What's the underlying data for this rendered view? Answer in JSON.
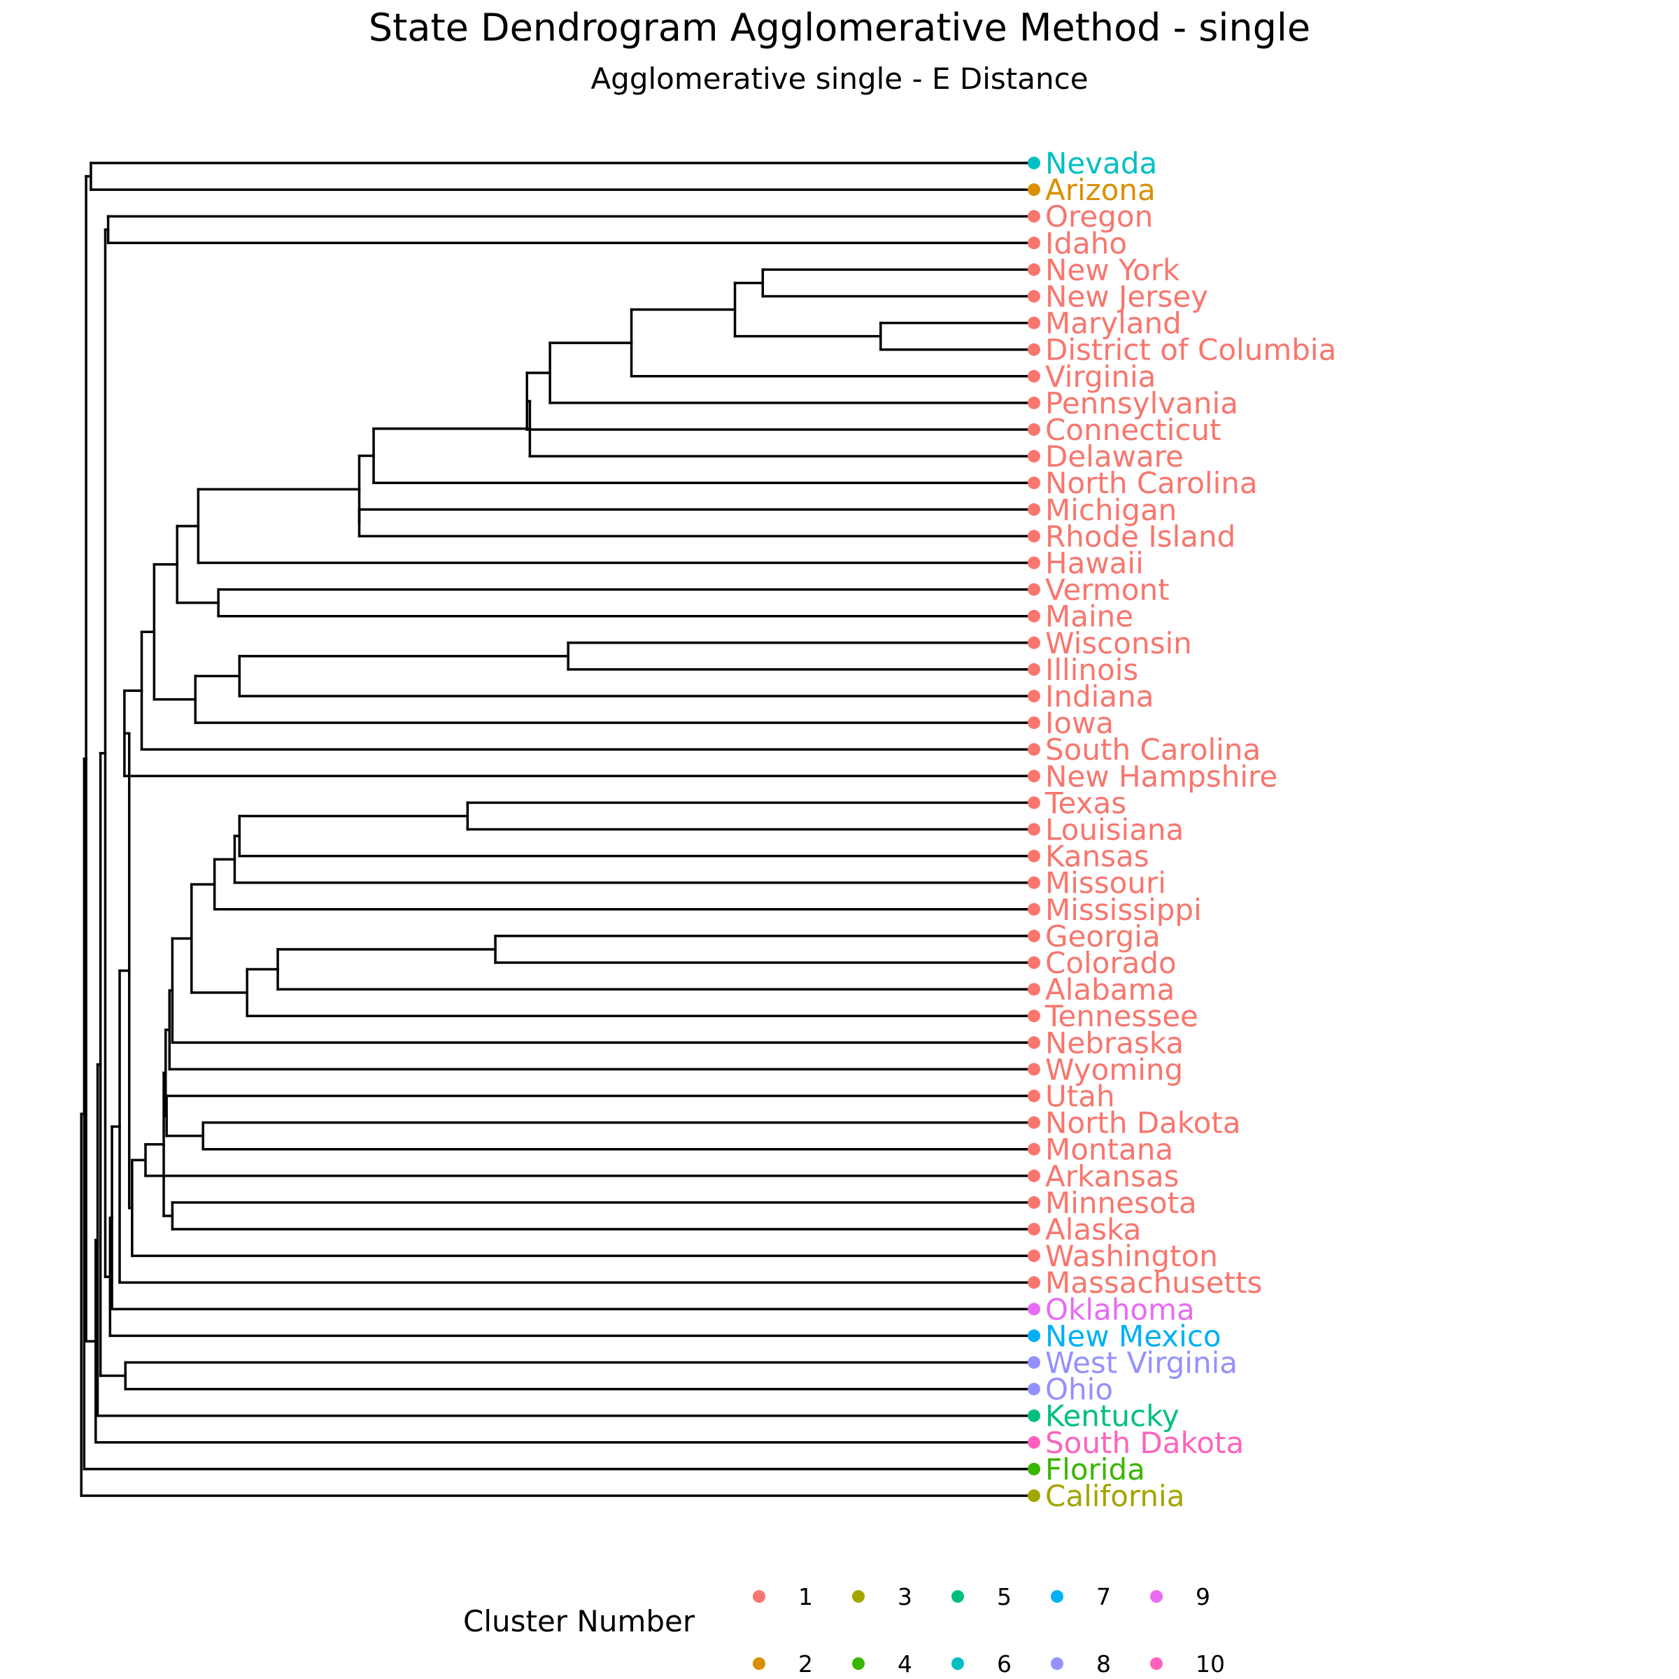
{
  "title": "State Dendrogram Agglomerative Method - single",
  "subtitle": "Agglomerative single - E Distance",
  "chart_data": {
    "type": "dendrogram",
    "orientation": "horizontal, leaves on right",
    "leaves": [
      {
        "label": "Nevada",
        "cluster": 6
      },
      {
        "label": "Arizona",
        "cluster": 2
      },
      {
        "label": "Oregon",
        "cluster": 1
      },
      {
        "label": "Idaho",
        "cluster": 1
      },
      {
        "label": "New York",
        "cluster": 1
      },
      {
        "label": "New Jersey",
        "cluster": 1
      },
      {
        "label": "Maryland",
        "cluster": 1
      },
      {
        "label": "District of Columbia",
        "cluster": 1
      },
      {
        "label": "Virginia",
        "cluster": 1
      },
      {
        "label": "Pennsylvania",
        "cluster": 1
      },
      {
        "label": "Connecticut",
        "cluster": 1
      },
      {
        "label": "Delaware",
        "cluster": 1
      },
      {
        "label": "North Carolina",
        "cluster": 1
      },
      {
        "label": "Michigan",
        "cluster": 1
      },
      {
        "label": "Rhode Island",
        "cluster": 1
      },
      {
        "label": "Hawaii",
        "cluster": 1
      },
      {
        "label": "Vermont",
        "cluster": 1
      },
      {
        "label": "Maine",
        "cluster": 1
      },
      {
        "label": "Wisconsin",
        "cluster": 1
      },
      {
        "label": "Illinois",
        "cluster": 1
      },
      {
        "label": "Indiana",
        "cluster": 1
      },
      {
        "label": "Iowa",
        "cluster": 1
      },
      {
        "label": "South Carolina",
        "cluster": 1
      },
      {
        "label": "New Hampshire",
        "cluster": 1
      },
      {
        "label": "Texas",
        "cluster": 1
      },
      {
        "label": "Louisiana",
        "cluster": 1
      },
      {
        "label": "Kansas",
        "cluster": 1
      },
      {
        "label": "Missouri",
        "cluster": 1
      },
      {
        "label": "Mississippi",
        "cluster": 1
      },
      {
        "label": "Georgia",
        "cluster": 1
      },
      {
        "label": "Colorado",
        "cluster": 1
      },
      {
        "label": "Alabama",
        "cluster": 1
      },
      {
        "label": "Tennessee",
        "cluster": 1
      },
      {
        "label": "Nebraska",
        "cluster": 1
      },
      {
        "label": "Wyoming",
        "cluster": 1
      },
      {
        "label": "Utah",
        "cluster": 1
      },
      {
        "label": "North Dakota",
        "cluster": 1
      },
      {
        "label": "Montana",
        "cluster": 1
      },
      {
        "label": "Arkansas",
        "cluster": 1
      },
      {
        "label": "Minnesota",
        "cluster": 1
      },
      {
        "label": "Alaska",
        "cluster": 1
      },
      {
        "label": "Washington",
        "cluster": 1
      },
      {
        "label": "Massachusetts",
        "cluster": 1
      },
      {
        "label": "Oklahoma",
        "cluster": 9
      },
      {
        "label": "New Mexico",
        "cluster": 7
      },
      {
        "label": "West Virginia",
        "cluster": 8
      },
      {
        "label": "Ohio",
        "cluster": 8
      },
      {
        "label": "Kentucky",
        "cluster": 5
      },
      {
        "label": "South Dakota",
        "cluster": 10
      },
      {
        "label": "Florida",
        "cluster": 4
      },
      {
        "label": "California",
        "cluster": 3
      }
    ],
    "merges": [
      {
        "a": "L4",
        "b": "L5",
        "height": 28.3
      },
      {
        "a": "L6",
        "b": "L7",
        "height": 16.0
      },
      {
        "a": "N0",
        "b": "N1",
        "height": 31.2
      },
      {
        "a": "N2",
        "b": "L8",
        "height": 42.0
      },
      {
        "a": "N3",
        "b": "L9",
        "height": 50.5
      },
      {
        "a": "N4",
        "b": "L10",
        "height": 52.9
      },
      {
        "a": "N5",
        "b": "L11",
        "height": 52.6
      },
      {
        "a": "N6",
        "b": "L12",
        "height": 68.9
      },
      {
        "a": "L13",
        "b": "L14",
        "height": 70.4
      },
      {
        "a": "N7",
        "b": "N8",
        "height": 70.4
      },
      {
        "a": "N9",
        "b": "L15",
        "height": 87.2
      },
      {
        "a": "L16",
        "b": "L17",
        "height": 85.1
      },
      {
        "a": "N10",
        "b": "N11",
        "height": 89.4
      },
      {
        "a": "L18",
        "b": "L19",
        "height": 48.6
      },
      {
        "a": "N13",
        "b": "L20",
        "height": 82.9
      },
      {
        "a": "N14",
        "b": "L21",
        "height": 87.5
      },
      {
        "a": "N12",
        "b": "N15",
        "height": 91.8
      },
      {
        "a": "N16",
        "b": "L22",
        "height": 93.1
      },
      {
        "a": "N17",
        "b": "L23",
        "height": 94.9
      },
      {
        "a": "L24",
        "b": "L25",
        "height": 59.1
      },
      {
        "a": "N19",
        "b": "L26",
        "height": 82.9
      },
      {
        "a": "N20",
        "b": "L27",
        "height": 83.4
      },
      {
        "a": "N21",
        "b": "L28",
        "height": 85.5
      },
      {
        "a": "L29",
        "b": "L30",
        "height": 56.2
      },
      {
        "a": "N23",
        "b": "L31",
        "height": 78.9
      },
      {
        "a": "N24",
        "b": "L32",
        "height": 82.1
      },
      {
        "a": "N22",
        "b": "N25",
        "height": 87.9
      },
      {
        "a": "N26",
        "b": "L33",
        "height": 89.9
      },
      {
        "a": "N27",
        "b": "L34",
        "height": 90.2
      },
      {
        "a": "L36",
        "b": "L37",
        "height": 86.7
      },
      {
        "a": "L35",
        "b": "N29",
        "height": 90.5
      },
      {
        "a": "N28",
        "b": "N30",
        "height": 90.6
      },
      {
        "a": "L39",
        "b": "L40",
        "height": 89.9
      },
      {
        "a": "N31",
        "b": "N32",
        "height": 90.8
      },
      {
        "a": "N33",
        "b": "L38",
        "height": 92.7
      },
      {
        "a": "N34",
        "b": "L41",
        "height": 94.1
      },
      {
        "a": "N18",
        "b": "N35",
        "height": 94.4
      },
      {
        "a": "N36",
        "b": "L42",
        "height": 95.4
      },
      {
        "a": "N37",
        "b": "L43",
        "height": 96.2
      },
      {
        "a": "N38",
        "b": "L44",
        "height": 96.4
      },
      {
        "a": "L2",
        "b": "L3",
        "height": 96.6
      },
      {
        "a": "N40",
        "b": "N39",
        "height": 96.9
      },
      {
        "a": "L45",
        "b": "L46",
        "height": 94.8
      },
      {
        "a": "N41",
        "b": "N42",
        "height": 97.4
      },
      {
        "a": "N43",
        "b": "L47",
        "height": 97.7
      },
      {
        "a": "N44",
        "b": "L48",
        "height": 97.9
      },
      {
        "a": "L0",
        "b": "L1",
        "height": 98.4
      },
      {
        "a": "N46",
        "b": "N45",
        "height": 98.9
      },
      {
        "a": "N47",
        "b": "L49",
        "height": 99.1
      },
      {
        "a": "N48",
        "b": "L50",
        "height": 99.4
      }
    ],
    "height_range": [
      0,
      100
    ],
    "legend": {
      "title": "Cluster Number",
      "position": "bottom",
      "entries": [
        {
          "label": "1",
          "color": "#F8766D"
        },
        {
          "label": "2",
          "color": "#D89000"
        },
        {
          "label": "3",
          "color": "#A3A500"
        },
        {
          "label": "4",
          "color": "#39B600"
        },
        {
          "label": "5",
          "color": "#00BF7D"
        },
        {
          "label": "6",
          "color": "#00BFC4"
        },
        {
          "label": "7",
          "color": "#00B0F6"
        },
        {
          "label": "8",
          "color": "#9590FF"
        },
        {
          "label": "9",
          "color": "#E76BF3"
        },
        {
          "label": "10",
          "color": "#FF62BC"
        }
      ]
    }
  }
}
